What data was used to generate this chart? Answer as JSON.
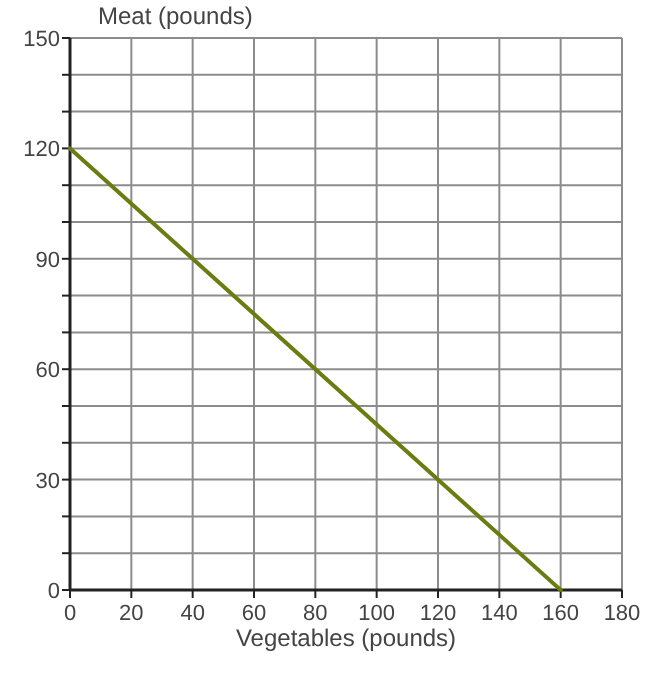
{
  "chart_data": {
    "type": "line",
    "ylabel": "Meat (pounds)",
    "xlabel": "Vegetables (pounds)",
    "x": [
      0,
      160
    ],
    "series": [
      {
        "color": "#6b7d12",
        "values": [
          120,
          0
        ]
      }
    ],
    "xlim": [
      0,
      180
    ],
    "xticks": [
      0,
      20,
      40,
      60,
      80,
      100,
      120,
      140,
      160,
      180
    ],
    "ylim": [
      0,
      150
    ],
    "yticks": [
      0,
      {
        "value": 10,
        "label": null
      },
      {
        "value": 20,
        "label": null
      },
      30,
      {
        "value": 40,
        "label": null
      },
      {
        "value": 50,
        "label": null
      },
      60,
      {
        "value": 70,
        "label": null
      },
      {
        "value": 80,
        "label": null
      },
      90,
      {
        "value": 100,
        "label": null
      },
      {
        "value": 110,
        "label": null
      },
      120,
      {
        "value": 130,
        "label": null
      },
      {
        "value": 140,
        "label": null
      },
      150
    ],
    "grid": true,
    "marker": "none",
    "line_style": "solid"
  }
}
